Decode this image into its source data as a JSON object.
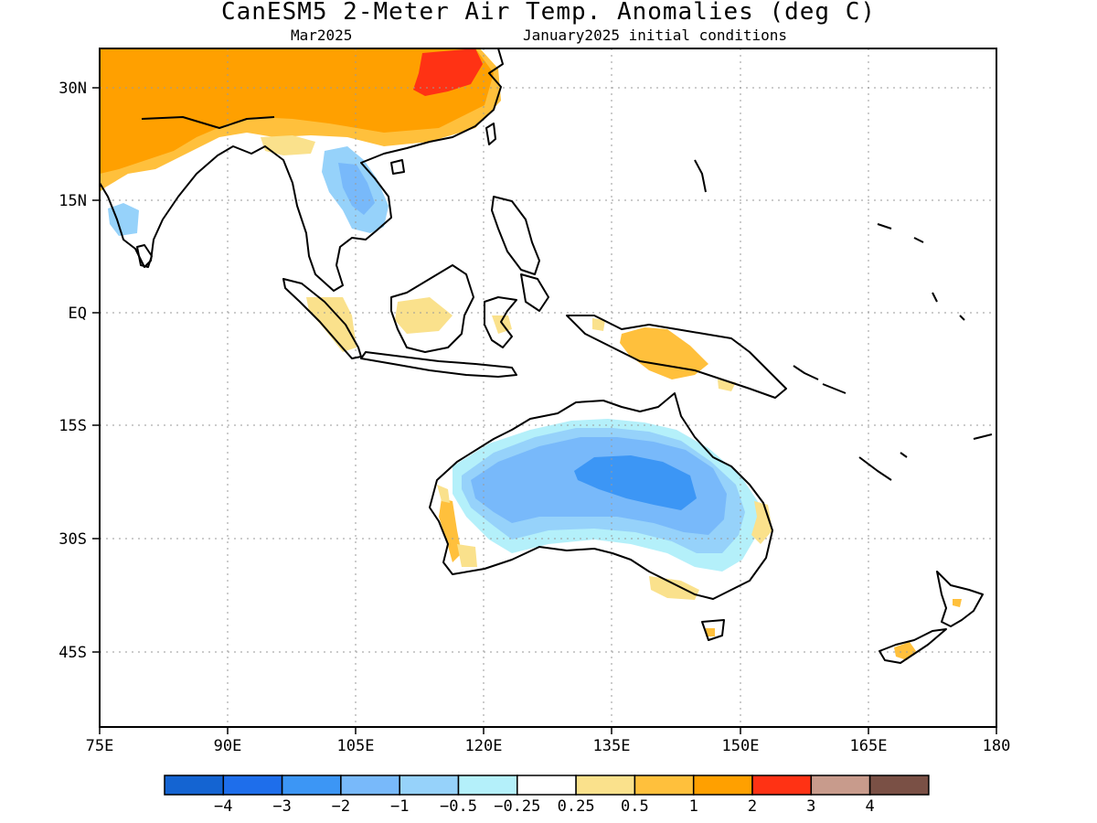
{
  "title": "CanESM5 2-Meter Air Temp. Anomalies (deg C)",
  "subtitle_left": "Mar2025",
  "subtitle_right": "January2025 initial conditions",
  "map": {
    "projection": "latitude-longitude",
    "lon_range": [
      75,
      180
    ],
    "lat_range": [
      -53,
      39
    ],
    "x_ticks": [
      "75E",
      "90E",
      "105E",
      "120E",
      "135E",
      "150E",
      "165E",
      "180"
    ],
    "y_ticks": [
      "30N",
      "15N",
      "EQ",
      "15S",
      "30S",
      "45S"
    ],
    "grid": "dotted"
  },
  "colorbar": {
    "colors": [
      "#1464d2",
      "#1e6eeb",
      "#3c96f5",
      "#78b9fa",
      "#96d2fa",
      "#b4f0fa",
      "#ffffff",
      "#fae18c",
      "#ffc03c",
      "#ffa000",
      "#ff3214",
      "#c89b8c",
      "#7a5045"
    ],
    "labels": [
      "-4",
      "-3",
      "-2",
      "-1",
      "-0.5",
      "-0.25",
      "0.25",
      "0.5",
      "1",
      "2",
      "3",
      "4"
    ]
  },
  "regions": [
    {
      "name": "asia-warm-anomaly",
      "value": "1 to 2"
    },
    {
      "name": "east-china-hot-spot",
      "value": "2 to 3"
    },
    {
      "name": "indochina-cool-anomaly",
      "value": "-1 to -0.5"
    },
    {
      "name": "central-australia-cool-anomaly",
      "value": "-2 to -1"
    },
    {
      "name": "new-guinea-warm-anomaly",
      "value": "0.5 to 1"
    }
  ]
}
